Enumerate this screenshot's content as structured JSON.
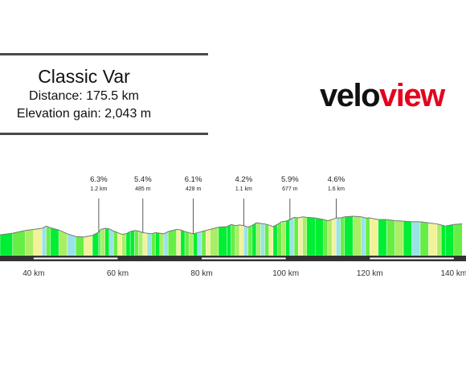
{
  "header": {
    "title": "Classic Var",
    "distance": "Distance: 175.5 km",
    "elevation_gain": "Elevation gain: 2,043 m"
  },
  "logo": {
    "part1": "velo",
    "part2": "view"
  },
  "colors": {
    "rule": "#4a4a4a",
    "logo_dark": "#111111",
    "logo_red": "#e6001e",
    "bar": "#333333",
    "bar_stripe": "#ffffff",
    "axis_text": "#333333",
    "gradient_scale": [
      "#00ee33",
      "#66ee44",
      "#aaee66",
      "#f2f29a",
      "#99e3e6"
    ]
  },
  "chart_data": {
    "type": "area",
    "x_unit": "km",
    "xlim": [
      32,
      142
    ],
    "x_ticks": [
      40,
      60,
      80,
      100,
      120,
      140
    ],
    "x_tick_labels": [
      "40 km",
      "60 km",
      "80 km",
      "100 km",
      "120 km",
      "140 km"
    ],
    "ylim": [
      0,
      100
    ],
    "profile": [
      [
        32,
        38
      ],
      [
        35,
        41
      ],
      [
        38,
        46
      ],
      [
        40,
        48
      ],
      [
        42,
        50
      ],
      [
        43,
        54
      ],
      [
        44,
        51
      ],
      [
        46,
        47
      ],
      [
        48,
        40
      ],
      [
        50,
        35
      ],
      [
        52,
        34
      ],
      [
        54,
        37
      ],
      [
        55.5,
        43
      ],
      [
        56,
        48
      ],
      [
        57,
        50
      ],
      [
        58,
        49
      ],
      [
        59,
        45
      ],
      [
        60,
        42
      ],
      [
        61,
        39
      ],
      [
        62,
        40
      ],
      [
        63,
        44
      ],
      [
        64,
        46
      ],
      [
        65,
        45
      ],
      [
        66,
        42
      ],
      [
        67,
        41
      ],
      [
        68,
        40
      ],
      [
        69,
        42
      ],
      [
        70,
        41
      ],
      [
        71,
        40
      ],
      [
        72,
        44
      ],
      [
        74,
        48
      ],
      [
        75,
        47
      ],
      [
        76,
        44
      ],
      [
        77,
        42
      ],
      [
        78,
        40
      ],
      [
        79,
        42
      ],
      [
        80,
        44
      ],
      [
        81,
        46
      ],
      [
        82,
        48
      ],
      [
        84,
        52
      ],
      [
        86,
        53
      ],
      [
        87,
        57
      ],
      [
        88,
        55
      ],
      [
        89,
        56
      ],
      [
        90,
        55
      ],
      [
        91,
        52
      ],
      [
        92,
        55
      ],
      [
        93,
        60
      ],
      [
        94,
        59
      ],
      [
        95,
        58
      ],
      [
        96,
        56
      ],
      [
        97,
        53
      ],
      [
        98,
        57
      ],
      [
        99,
        62
      ],
      [
        100,
        63
      ],
      [
        101,
        66
      ],
      [
        102,
        70
      ],
      [
        103,
        69
      ],
      [
        104,
        71
      ],
      [
        105,
        70
      ],
      [
        107,
        69
      ],
      [
        109,
        66
      ],
      [
        110,
        64
      ],
      [
        111,
        66
      ],
      [
        112,
        69
      ],
      [
        113,
        69
      ],
      [
        114,
        71
      ],
      [
        116,
        72
      ],
      [
        118,
        71
      ],
      [
        119,
        69
      ],
      [
        120,
        69
      ],
      [
        122,
        66
      ],
      [
        124,
        66
      ],
      [
        126,
        64
      ],
      [
        128,
        63
      ],
      [
        130,
        62
      ],
      [
        132,
        62
      ],
      [
        134,
        60
      ],
      [
        136,
        58
      ],
      [
        137,
        56
      ],
      [
        138,
        54
      ],
      [
        140,
        57
      ],
      [
        142,
        58
      ]
    ],
    "segment_colors": [
      "#00ee33",
      "#66ee44",
      "#aaee66",
      "#f2f29a",
      "#99e3e6",
      "#66ee44",
      "#00ee33",
      "#aaee66",
      "#99e3e6",
      "#66ee44",
      "#f2f29a",
      "#00ee33",
      "#66ee44",
      "#aaee66",
      "#00ee33",
      "#99e3e6",
      "#66ee44",
      "#f2f29a",
      "#aaee66",
      "#00ee33"
    ],
    "climbs": [
      {
        "km": 55.5,
        "gradient": "6.3%",
        "length": "1.2 km"
      },
      {
        "km": 66,
        "gradient": "5.4%",
        "length": "485 m"
      },
      {
        "km": 78,
        "gradient": "6.1%",
        "length": "428 m"
      },
      {
        "km": 90,
        "gradient": "4.2%",
        "length": "1.1 km"
      },
      {
        "km": 101,
        "gradient": "5.9%",
        "length": "677 m"
      },
      {
        "km": 112,
        "gradient": "4.6%",
        "length": "1.6 km"
      }
    ]
  }
}
